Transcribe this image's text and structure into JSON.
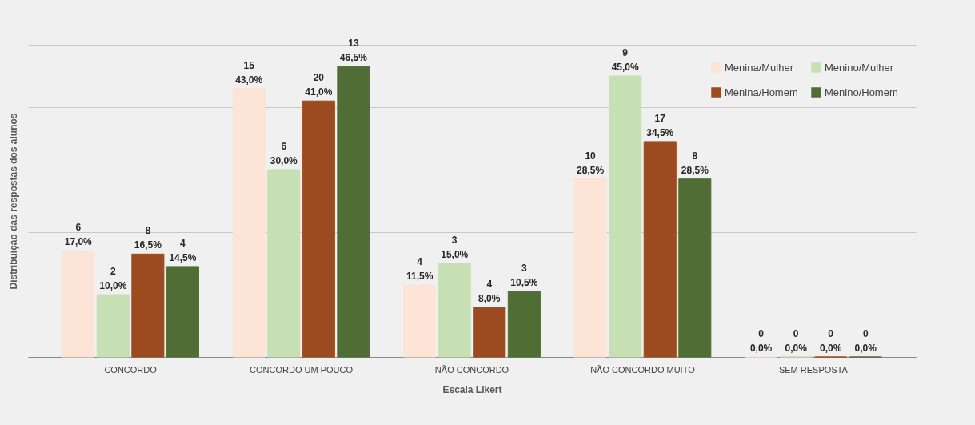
{
  "chart_data": {
    "type": "bar",
    "xlabel": "Escala Likert",
    "ylabel": "Distribuição das respostas dos alunos",
    "categories": [
      "CONCORDO",
      "CONCORDO UM POUCO",
      "NÃO CONCORDO",
      "NÃO CONCORDO MUITO",
      "SEM RESPOSTA"
    ],
    "series": [
      {
        "name": "Menina/Mulher",
        "color": "#fce4d6",
        "values": [
          17.0,
          43.0,
          11.5,
          28.5,
          0.0
        ],
        "value_labels": [
          "6\n17,0%",
          "15\n43,0%",
          "4\n11,5%",
          "10\n28,5%",
          "0\n0,0%"
        ]
      },
      {
        "name": "Menino/Mulher",
        "color": "#c6e0b4",
        "values": [
          10.0,
          30.0,
          15.0,
          45.0,
          0.0
        ],
        "value_labels": [
          "2\n10,0%",
          "6\n30,0%",
          "3\n15,0%",
          "9\n45,0%",
          "0\n0,0%"
        ]
      },
      {
        "name": "Menina/Homem",
        "color": "#9c4a1f",
        "values": [
          16.5,
          41.0,
          8.0,
          34.5,
          0.0
        ],
        "value_labels": [
          "8\n16,5%",
          "20\n41,0%",
          "4\n8,0%",
          "17\n34,5%",
          "0\n0,0%"
        ]
      },
      {
        "name": "Menino/Homem",
        "color": "#4f6d35",
        "values": [
          14.5,
          46.5,
          10.5,
          28.5,
          0.0
        ],
        "value_labels": [
          "4\n14,5%",
          "13\n46,5%",
          "3\n10,5%",
          "8\n28,5%",
          "0\n0,0%"
        ]
      }
    ],
    "ylim": [
      0,
      50
    ],
    "yticks": [
      {
        "value": 0,
        "label": null
      },
      {
        "value": 10,
        "label": null
      },
      {
        "value": 20,
        "label": null
      },
      {
        "value": 30,
        "label": null
      },
      {
        "value": 40,
        "label": null
      },
      {
        "value": 50,
        "label": null
      }
    ],
    "grid": "y",
    "legend": "top right"
  }
}
